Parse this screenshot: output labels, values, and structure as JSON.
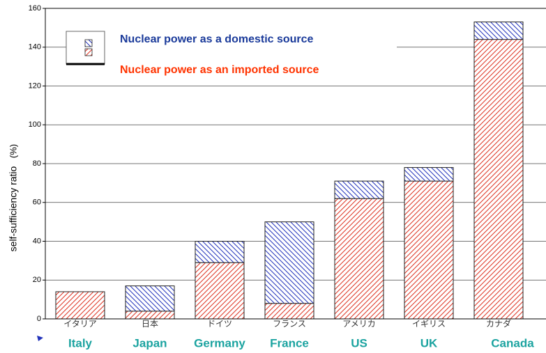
{
  "chart_data": {
    "type": "bar",
    "stacked": true,
    "y_label": "self-sufficiency ratio",
    "y_unit": "(%)",
    "categories": [
      "Italy",
      "Japan",
      "Germany",
      "France",
      "US",
      "UK",
      "Canada"
    ],
    "category_labels_local": [
      "イタリア",
      "日本",
      "ドイツ",
      "フランス",
      "アメリカ",
      "イギリス",
      "カナダ"
    ],
    "series": [
      {
        "name": "Nuclear power as a domestic source",
        "color": "#2233bb",
        "values": [
          0,
          13,
          11,
          42,
          9,
          7,
          9
        ]
      },
      {
        "name": "Nuclear power as an imported source",
        "color": "#dd3322",
        "values": [
          14,
          4,
          29,
          8,
          62,
          71,
          144
        ]
      }
    ],
    "ylim": [
      0,
      160
    ],
    "yticks": [
      0,
      20,
      40,
      60,
      80,
      100,
      120,
      140,
      160
    ],
    "grid": true
  }
}
